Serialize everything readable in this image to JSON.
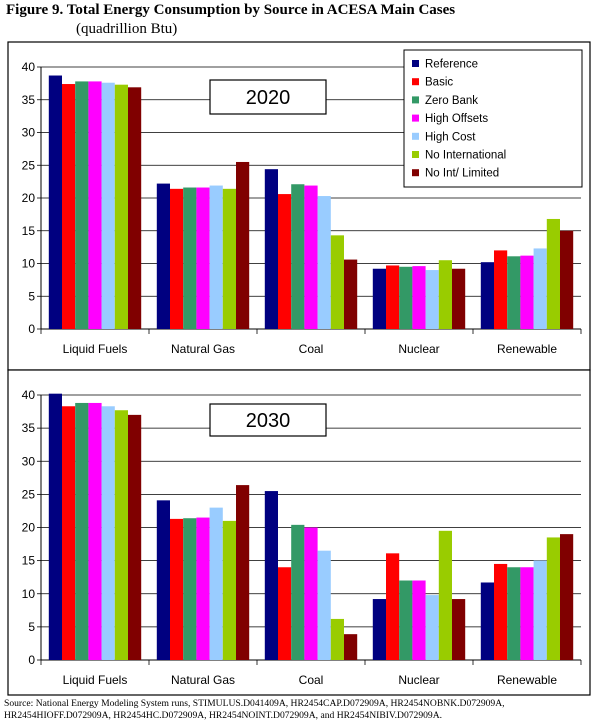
{
  "figure": {
    "title": "Figure 9.  Total Energy Consumption by Source in ACESA Main Cases",
    "subtitle": "(quadrillion Btu)",
    "source": "Source:  National Energy Modeling System runs, STIMULUS.D041409A, HR2454CAP.D072909A, HR2454NOBNK.D072909A, HR2454HIOFF.D072909A, HR2454HC.D072909A, HR2454NOINT.D072909A, and HR2454NIBIV.D072909A."
  },
  "colors": {
    "Reference": "#000080",
    "Basic": "#ff0000",
    "Zero Bank": "#339966",
    "High Offsets": "#ff00ff",
    "High Cost": "#99ccff",
    "No International": "#99cc00",
    "No Int/ Limited": "#800000"
  },
  "chart_data": [
    {
      "type": "bar",
      "title": "2020",
      "categories": [
        "Liquid Fuels",
        "Natural Gas",
        "Coal",
        "Nuclear",
        "Renewable"
      ],
      "ylim": [
        0,
        40
      ],
      "yticks": [
        0,
        5,
        10,
        15,
        20,
        25,
        30,
        35,
        40
      ],
      "legend": "top-right",
      "series": [
        {
          "name": "Reference",
          "values": [
            38.7,
            22.2,
            24.4,
            9.2,
            10.2
          ]
        },
        {
          "name": "Basic",
          "values": [
            37.4,
            21.4,
            20.6,
            9.7,
            12.0
          ]
        },
        {
          "name": "Zero Bank",
          "values": [
            37.8,
            21.6,
            22.1,
            9.5,
            11.1
          ]
        },
        {
          "name": "High Offsets",
          "values": [
            37.8,
            21.6,
            21.9,
            9.6,
            11.2
          ]
        },
        {
          "name": "High Cost",
          "values": [
            37.6,
            21.9,
            20.3,
            9.0,
            12.3
          ]
        },
        {
          "name": "No International",
          "values": [
            37.3,
            21.4,
            14.3,
            10.5,
            16.8
          ]
        },
        {
          "name": "No Int/ Limited",
          "values": [
            36.9,
            25.5,
            10.6,
            9.2,
            15.0
          ]
        }
      ]
    },
    {
      "type": "bar",
      "title": "2030",
      "categories": [
        "Liquid Fuels",
        "Natural Gas",
        "Coal",
        "Nuclear",
        "Renewable"
      ],
      "ylim": [
        0,
        40
      ],
      "yticks": [
        0,
        5,
        10,
        15,
        20,
        25,
        30,
        35,
        40
      ],
      "series": [
        {
          "name": "Reference",
          "values": [
            40.2,
            24.1,
            25.5,
            9.2,
            11.7
          ]
        },
        {
          "name": "Basic",
          "values": [
            38.3,
            21.3,
            14.0,
            16.1,
            14.5
          ]
        },
        {
          "name": "Zero Bank",
          "values": [
            38.8,
            21.4,
            20.4,
            12.0,
            14.0
          ]
        },
        {
          "name": "High Offsets",
          "values": [
            38.8,
            21.5,
            20.0,
            12.0,
            14.0
          ]
        },
        {
          "name": "High Cost",
          "values": [
            38.3,
            23.0,
            16.5,
            9.8,
            15.0
          ]
        },
        {
          "name": "No International",
          "values": [
            37.7,
            21.0,
            6.2,
            19.5,
            18.5
          ]
        },
        {
          "name": "No Int/ Limited",
          "values": [
            37.0,
            26.4,
            3.9,
            9.2,
            19.0
          ]
        }
      ]
    }
  ]
}
